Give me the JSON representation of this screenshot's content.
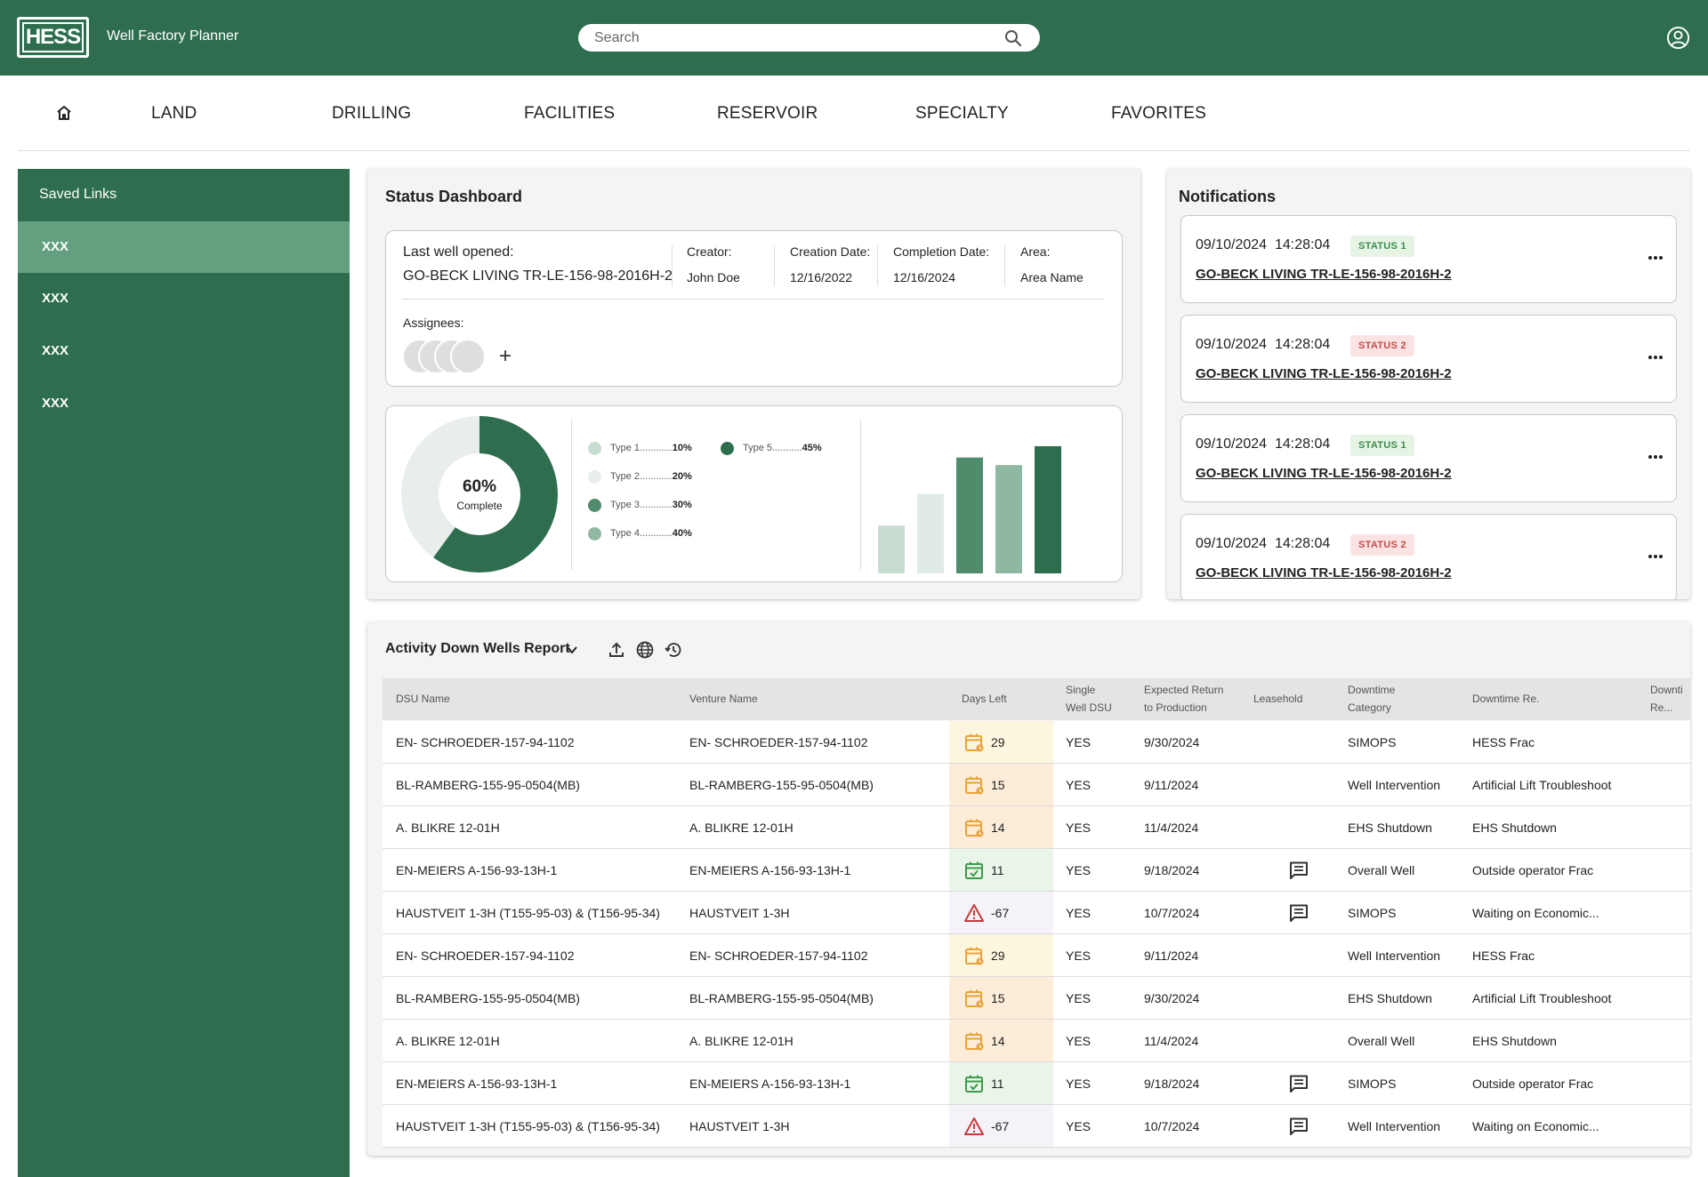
{
  "app": {
    "logo_text": "HESS",
    "title": "Well Factory Planner",
    "search_placeholder": "Search",
    "accent_color": "#2e6e4e"
  },
  "nav": {
    "home_icon": "home-icon",
    "items": [
      "LAND",
      "DRILLING",
      "FACILITIES",
      "RESERVOIR",
      "SPECIALTY",
      "FAVORITES"
    ]
  },
  "sidebar": {
    "title": "Saved Links",
    "items": [
      {
        "label": "XXX",
        "active": true
      },
      {
        "label": "XXX",
        "active": false
      },
      {
        "label": "XXX",
        "active": false
      },
      {
        "label": "XXX",
        "active": false
      }
    ]
  },
  "status": {
    "title": "Status Dashboard",
    "last_well_label": "Last well opened:",
    "last_well_value": "GO-BECK LIVING TR-LE-156-98-2016H-2",
    "creator_label": "Creator:",
    "creator_value": "John Doe",
    "creation_label": "Creation Date:",
    "creation_value": "12/16/2022",
    "completion_label": "Completion Date:",
    "completion_value": "12/16/2024",
    "area_label": "Area:",
    "area_value": "Area Name",
    "assignees_label": "Assignees:",
    "donut_pct": "60%",
    "donut_sub": "Complete",
    "legend": [
      {
        "label": "Type 1",
        "dots": "............",
        "pct": "10%",
        "color": "#c8ddd2"
      },
      {
        "label": "Type 2",
        "dots": "............",
        "pct": "20%",
        "color": "#e8eeeb"
      },
      {
        "label": "Type 3",
        "dots": "............",
        "pct": "30%",
        "color": "#4f8c6c"
      },
      {
        "label": "Type 4",
        "dots": "............",
        "pct": "40%",
        "color": "#8fb8a3"
      },
      {
        "label": "Type 5",
        "dots": "...........",
        "pct": "45%",
        "color": "#2e6e4e"
      }
    ]
  },
  "chart_data": {
    "type": "bar",
    "categories": [
      "Type 1",
      "Type 2",
      "Type 3",
      "Type 4",
      "Type 5"
    ],
    "values": [
      38,
      63,
      92,
      86,
      101
    ],
    "colors": [
      "#c8ddd2",
      "#e0ebe5",
      "#4f8c6c",
      "#8fb8a3",
      "#2e6e4e"
    ],
    "ylim": [
      0,
      120
    ],
    "grid": false,
    "xlabel": "",
    "ylabel": ""
  },
  "notifications": {
    "title": "Notifications",
    "items": [
      {
        "time": "09/10/2024  14:28:04",
        "status": "STATUS 1",
        "kind": "s1",
        "link": "GO-BECK LIVING TR-LE-156-98-2016H-2"
      },
      {
        "time": "09/10/2024  14:28:04",
        "status": "STATUS 2",
        "kind": "s2",
        "link": "GO-BECK LIVING TR-LE-156-98-2016H-2"
      },
      {
        "time": "09/10/2024  14:28:04",
        "status": "STATUS 1",
        "kind": "s1",
        "link": "GO-BECK LIVING TR-LE-156-98-2016H-2"
      },
      {
        "time": "09/10/2024  14:28:04",
        "status": "STATUS 2",
        "kind": "s2",
        "link": "GO-BECK LIVING TR-LE-156-98-2016H-2"
      }
    ]
  },
  "report": {
    "title": "Activity Down Wells Report",
    "columns": [
      {
        "l1": "DSU Name",
        "l2": ""
      },
      {
        "l1": "Venture Name",
        "l2": ""
      },
      {
        "l1": "Days Left",
        "l2": ""
      },
      {
        "l1": "Single",
        "l2": "Well DSU"
      },
      {
        "l1": "Expected Return",
        "l2": "to Production"
      },
      {
        "l1": "Leasehold",
        "l2": ""
      },
      {
        "l1": "Downtime",
        "l2": "Category"
      },
      {
        "l1": "Downtime Re.",
        "l2": ""
      },
      {
        "l1": "Downti",
        "l2": "Re..."
      }
    ],
    "rows": [
      {
        "dsu": "EN- SCHROEDER-157-94-1102",
        "venture": "EN- SCHROEDER-157-94-1102",
        "days": "29",
        "state": "soon",
        "single": "YES",
        "ret": "9/30/2024",
        "lease": false,
        "cat": "SIMOPS",
        "reason": "HESS Frac"
      },
      {
        "dsu": "BL-RAMBERG-155-95-0504(MB)",
        "venture": "BL-RAMBERG-155-95-0504(MB)",
        "days": "15",
        "state": "due",
        "single": "YES",
        "ret": "9/11/2024",
        "lease": false,
        "cat": "Well Intervention",
        "reason": "Artificial Lift Troubleshoot"
      },
      {
        "dsu": "A. BLIKRE 12-01H",
        "venture": "A. BLIKRE 12-01H",
        "days": "14",
        "state": "due",
        "single": "YES",
        "ret": "11/4/2024",
        "lease": false,
        "cat": "EHS Shutdown",
        "reason": "EHS Shutdown"
      },
      {
        "dsu": "EN-MEIERS A-156-93-13H-1",
        "venture": "EN-MEIERS A-156-93-13H-1",
        "days": "11",
        "state": "ok",
        "single": "YES",
        "ret": "9/18/2024",
        "lease": true,
        "cat": "Overall Well",
        "reason": "Outside operator Frac"
      },
      {
        "dsu": "HAUSTVEIT 1-3H (T155-95-03) & (T156-95-34)",
        "venture": "HAUSTVEIT 1-3H",
        "days": "-67",
        "state": "late",
        "single": "YES",
        "ret": "10/7/2024",
        "lease": true,
        "cat": "SIMOPS",
        "reason": "Waiting on Economic..."
      },
      {
        "dsu": "EN- SCHROEDER-157-94-1102",
        "venture": "EN- SCHROEDER-157-94-1102",
        "days": "29",
        "state": "soon",
        "single": "YES",
        "ret": "9/11/2024",
        "lease": false,
        "cat": "Well Intervention",
        "reason": "HESS Frac"
      },
      {
        "dsu": "BL-RAMBERG-155-95-0504(MB)",
        "venture": "BL-RAMBERG-155-95-0504(MB)",
        "days": "15",
        "state": "due",
        "single": "YES",
        "ret": "9/30/2024",
        "lease": false,
        "cat": "EHS Shutdown",
        "reason": "Artificial Lift Troubleshoot"
      },
      {
        "dsu": "A. BLIKRE 12-01H",
        "venture": "A. BLIKRE 12-01H",
        "days": "14",
        "state": "due",
        "single": "YES",
        "ret": "11/4/2024",
        "lease": false,
        "cat": "Overall Well",
        "reason": "EHS Shutdown"
      },
      {
        "dsu": "EN-MEIERS A-156-93-13H-1",
        "venture": "EN-MEIERS A-156-93-13H-1",
        "days": "11",
        "state": "ok",
        "single": "YES",
        "ret": "9/18/2024",
        "lease": true,
        "cat": "SIMOPS",
        "reason": "Outside operator Frac"
      },
      {
        "dsu": "HAUSTVEIT 1-3H (T155-95-03) & (T156-95-34)",
        "venture": "HAUSTVEIT 1-3H",
        "days": "-67",
        "state": "late",
        "single": "YES",
        "ret": "10/7/2024",
        "lease": true,
        "cat": "Well Intervention",
        "reason": "Waiting on Economic..."
      }
    ],
    "state_colors": {
      "soon": {
        "bg": "#fdf6df",
        "icon": "#e8a33d"
      },
      "due": {
        "bg": "#fcecd8",
        "icon": "#e8a33d"
      },
      "ok": {
        "bg": "#eaf5ea",
        "icon": "#3d9a4a"
      },
      "late": {
        "bg": "#f5f2fa",
        "icon": "#c83a3a"
      }
    }
  }
}
